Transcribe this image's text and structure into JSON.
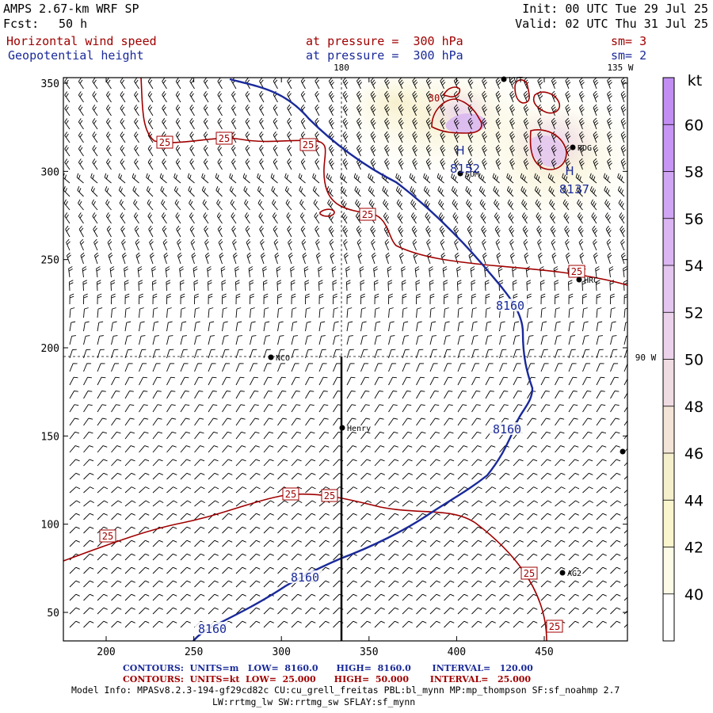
{
  "header": {
    "model": "AMPS 2.67-km WRF SP",
    "forecast_label": "Fcst:",
    "forecast_hours": "50 h",
    "init": "Init: 00 UTC Tue 29 Jul 25",
    "valid": "Valid: 02 UTC Thu 31 Jul 25",
    "field1": "Horizontal wind speed",
    "field1_level": "at pressure =  300 hPa",
    "field1_sm": "sm= 3",
    "field2": "Geopotential height",
    "field2_level": "at pressure =  300 hPa",
    "field2_sm": "sm= 2"
  },
  "map_labels": {
    "lon_180": "180",
    "lon_135w": "135 W",
    "lon_90w": "90 W",
    "stations": [
      {
        "name": "NCO"
      },
      {
        "name": "Henry"
      },
      {
        "name": "RDG"
      },
      {
        "name": "HRC"
      },
      {
        "name": "AG2"
      },
      {
        "name": "SOM"
      },
      {
        "name": "LVT"
      }
    ],
    "highs": [
      {
        "label": "H",
        "value": "8152"
      },
      {
        "label": "H",
        "value": "8137"
      }
    ],
    "height_contour_label": "8160",
    "speed_contour_label": "25",
    "speed_high_label": "30"
  },
  "axes": {
    "x_ticks": [
      "200",
      "250",
      "300",
      "350",
      "400",
      "450"
    ],
    "y_ticks": [
      "50",
      "100",
      "150",
      "200",
      "250",
      "300",
      "350"
    ]
  },
  "colorbar": {
    "unit": "kt",
    "ticks": [
      "40",
      "42",
      "44",
      "46",
      "48",
      "50",
      "52",
      "54",
      "56",
      "58",
      "60"
    ],
    "colors": [
      "#ffffff",
      "#fdfbe6",
      "#faf5cc",
      "#f6efcc",
      "#f2e4d6",
      "#efdbe2",
      "#ebd2ea",
      "#e3c5f0",
      "#dab5f2",
      "#d0a5f3",
      "#c795f4"
    ]
  },
  "footer": {
    "contours1": "CONTOURS:  UNITS=m   LOW=  8160.0      HIGH=  8160.0       INTERVAL=   120.00",
    "contours2": "CONTOURS:  UNITS=kt  LOW=  25.000      HIGH=  50.000       INTERVAL=   25.000",
    "model_info": "Model Info: MPASv8.2.3-194-gf29cd82c CU:cu_grell_freitas PBL:bl_mynn MP:mp_thompson SF:sf_noahmp 2.7",
    "model_info2": "LW:rrtmg_lw SW:rrtmg_sw SFLAY:sf_mynn"
  }
}
